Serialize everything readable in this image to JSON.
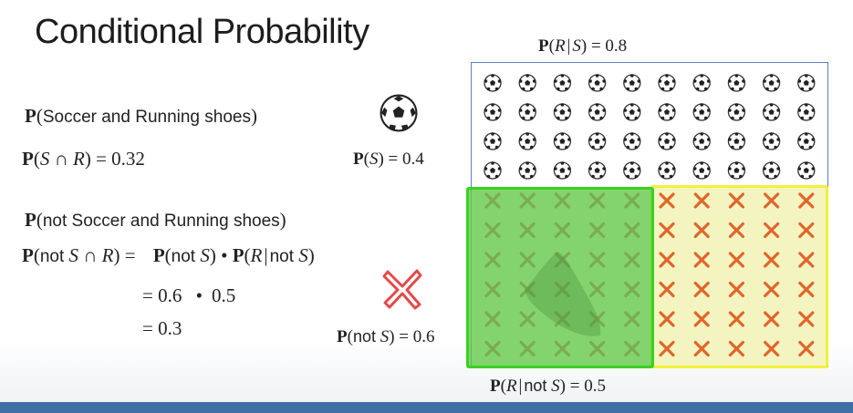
{
  "slide": {
    "title": "Conditional Probability",
    "p_r_given_s": "P(R | S) = 0.8",
    "p_s_label": "P(S) = 0.4",
    "p_not_s_label": "P(not S) = 0.6",
    "p_r_given_not_s": "P(R | not S) = 0.5",
    "joint_heading": "P(Soccer and Running shoes)",
    "joint_formula": "P(S ∩ R) = 0.32",
    "not_heading": "P(not Soccer and Running shoes)",
    "not_formula": "P(not S ∩ R) = P(not S) • P(R | not S)",
    "step1": "= 0.6 • 0.5",
    "step2": "= 0.3"
  },
  "parts": {
    "P": "P",
    "paren_open": "(",
    "paren_close": ")",
    "bar": "|",
    "eq": "=",
    "S": "S",
    "R": "R",
    "not": "not",
    "cap": "∩",
    "bullet": "•",
    "soccer_and_running": "Soccer and Running shoes",
    "not_soccer_and_running": "not Soccer and Running shoes",
    "v_08": "0.8",
    "v_04": "0.4",
    "v_06": "0.6",
    "v_05": "0.5",
    "v_032": "0.32",
    "v_03": "0.3"
  },
  "grid": {
    "soccer_rows": 4,
    "columns": 10,
    "x_rows": 6,
    "not_s_green_columns": 5
  },
  "icons": {
    "soccer": "soccer-ball-icon",
    "cross": "x-mark-icon",
    "big_cross": "red-x-icon",
    "shoe": "running-shoe-icon"
  },
  "colors": {
    "grid_border": "#5b7fc2",
    "green_highlight": "#39d222",
    "yellow_highlight": "#f1f13a",
    "x_orange": "#e0662b",
    "x_green": "#7bab52",
    "red_x": "#e54848",
    "bottom_bar": "#3f6fa6"
  }
}
